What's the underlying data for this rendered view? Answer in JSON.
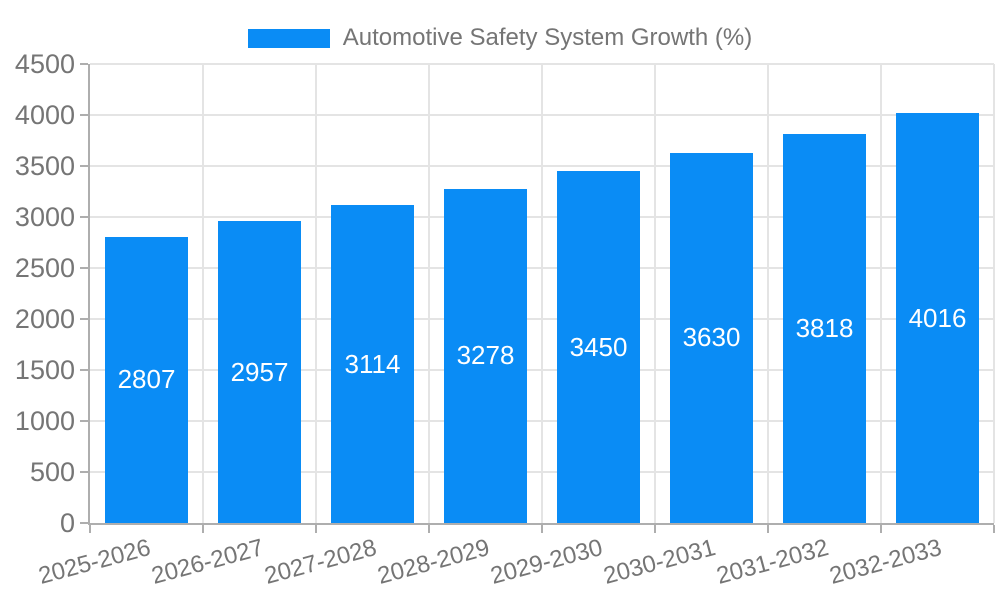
{
  "legend": {
    "label": "Automotive Safety System Growth (%)"
  },
  "colors": {
    "bar": "#0a8cf5",
    "axis_text": "#757575",
    "grid": "#e4e4e4",
    "spine": "#aeaeae",
    "bar_label": "#ffffff"
  },
  "chart_data": {
    "type": "bar",
    "title": "Automotive Safety System Growth (%)",
    "categories": [
      "2025-2026",
      "2026-2027",
      "2027-2028",
      "2028-2029",
      "2029-2030",
      "2030-2031",
      "2031-2032",
      "2032-2033"
    ],
    "values": [
      2807,
      2957,
      3114,
      3278,
      3450,
      3630,
      3818,
      4016
    ],
    "xlabel": "",
    "ylabel": "",
    "ylim": [
      0,
      4500
    ],
    "ytick_step": 500,
    "yticks": [
      0,
      500,
      1000,
      1500,
      2000,
      2500,
      3000,
      3500,
      4000,
      4500
    ],
    "grid": true,
    "legend_position": "top-center",
    "value_labels": "inside-center"
  }
}
